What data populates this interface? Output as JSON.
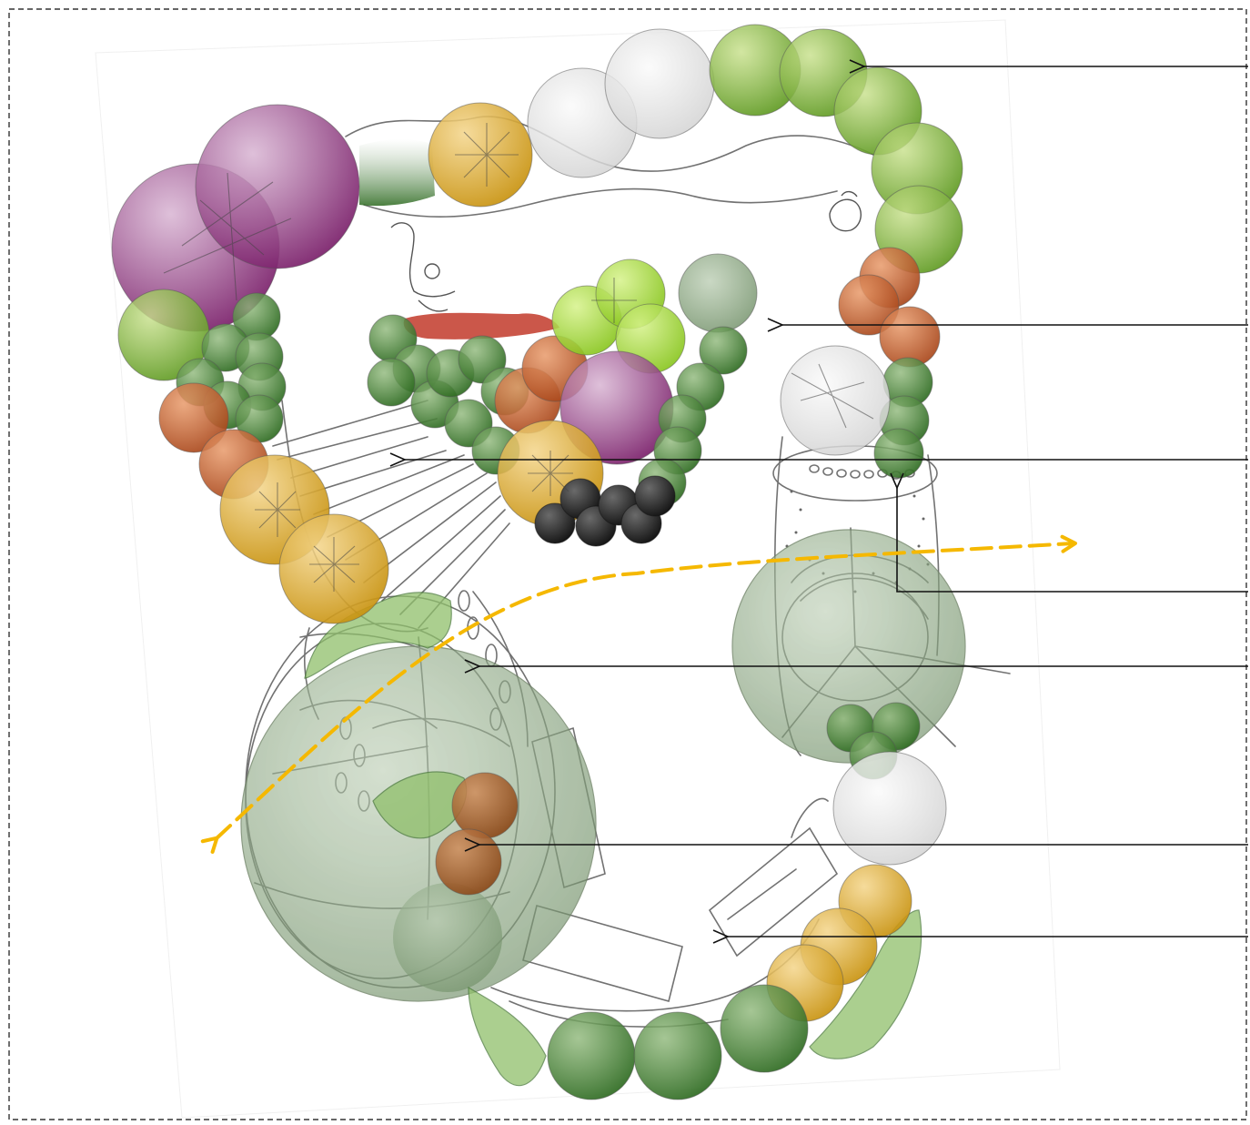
{
  "diagram": {
    "type": "garden-planting-plan-sketch",
    "frame": {
      "style": "dashed",
      "color": "#333333"
    },
    "callouts_count": 8,
    "callout_labels": [],
    "flow_path": {
      "style": "dashed-arrow",
      "direction": "bidirectional",
      "color": "#f5b800"
    },
    "planting_colors": {
      "light-green": "#8ab83a",
      "dark-green": "#3f7a2a",
      "lime": "#9bd42a",
      "purple": "#8a2f7a",
      "gold": "#d7a21c",
      "orange-brown": "#c0561e",
      "grey-green": "#a9b59a",
      "white-grey": "#e6e6e6",
      "black": "#1a1a1a",
      "red": "#c23a2a",
      "pale-green-foliage": "#8fbf6a"
    },
    "icons": [
      "person-sketch-icon",
      "chair-sketch-icon",
      "path-stepping-stones-icon"
    ]
  }
}
